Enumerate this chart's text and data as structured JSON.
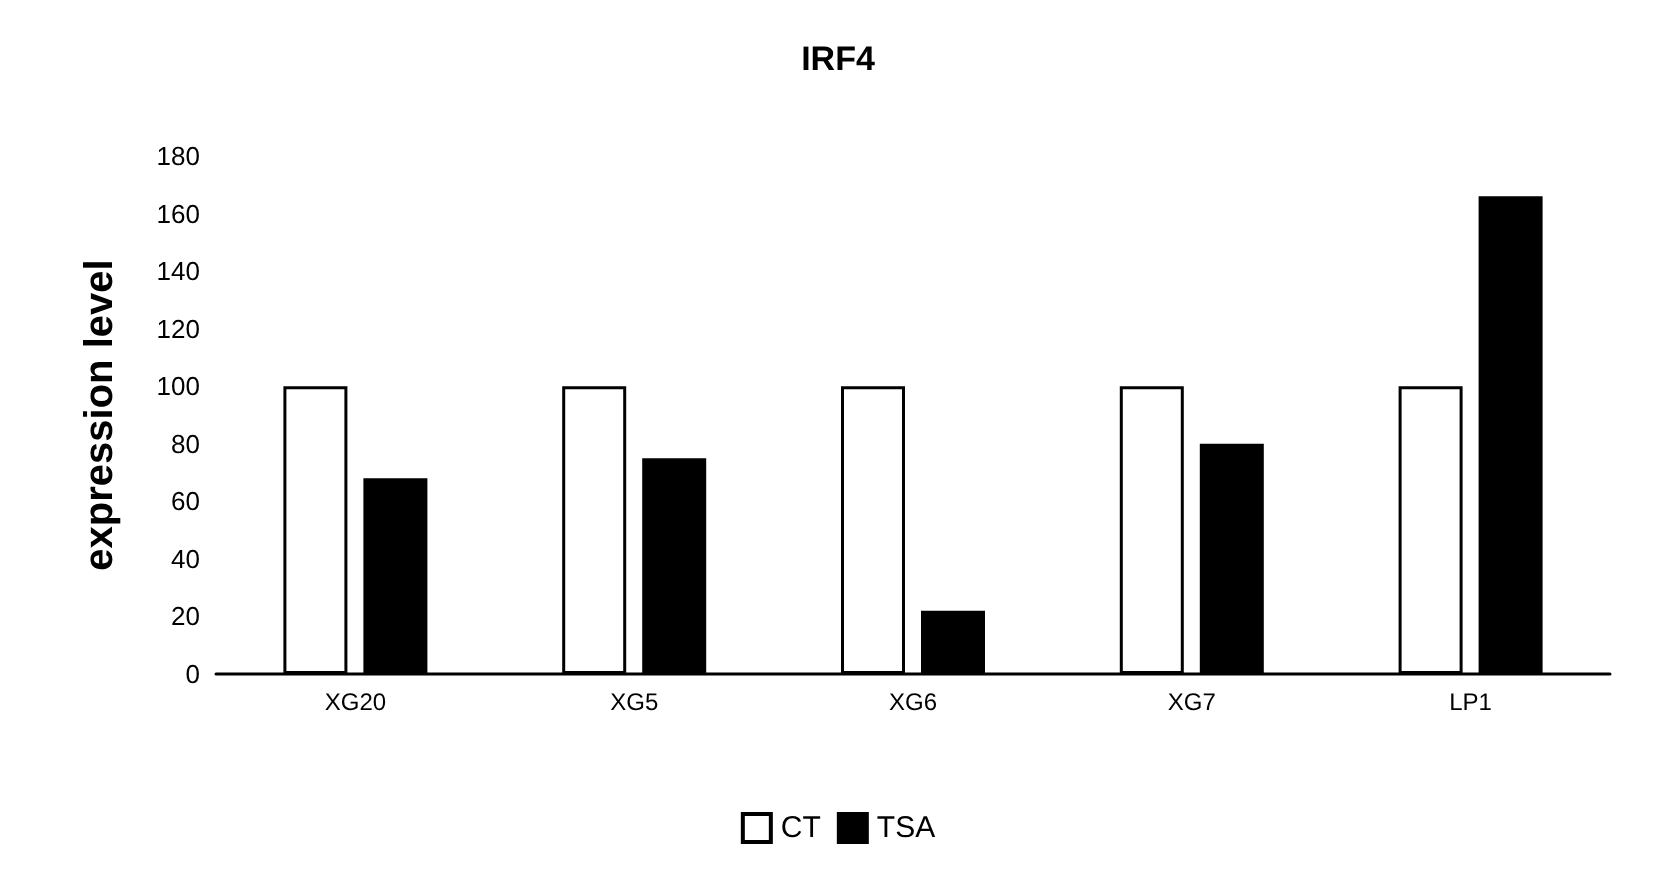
{
  "chart_data": {
    "type": "bar",
    "title": "IRF4",
    "ylabel": "expression level",
    "categories": [
      "XG20",
      "XG5",
      "XG6",
      "XG7",
      "LP1"
    ],
    "series": [
      {
        "name": "CT",
        "color": "#ffffff",
        "values": [
          100,
          100,
          100,
          100,
          100
        ]
      },
      {
        "name": "TSA",
        "color": "#000000",
        "values": [
          68,
          75,
          22,
          80,
          166
        ]
      }
    ],
    "ylim": [
      0,
      180
    ],
    "yticks": [
      0,
      20,
      40,
      60,
      80,
      100,
      120,
      140,
      160,
      180
    ],
    "grid": false,
    "legend": "bottom"
  }
}
